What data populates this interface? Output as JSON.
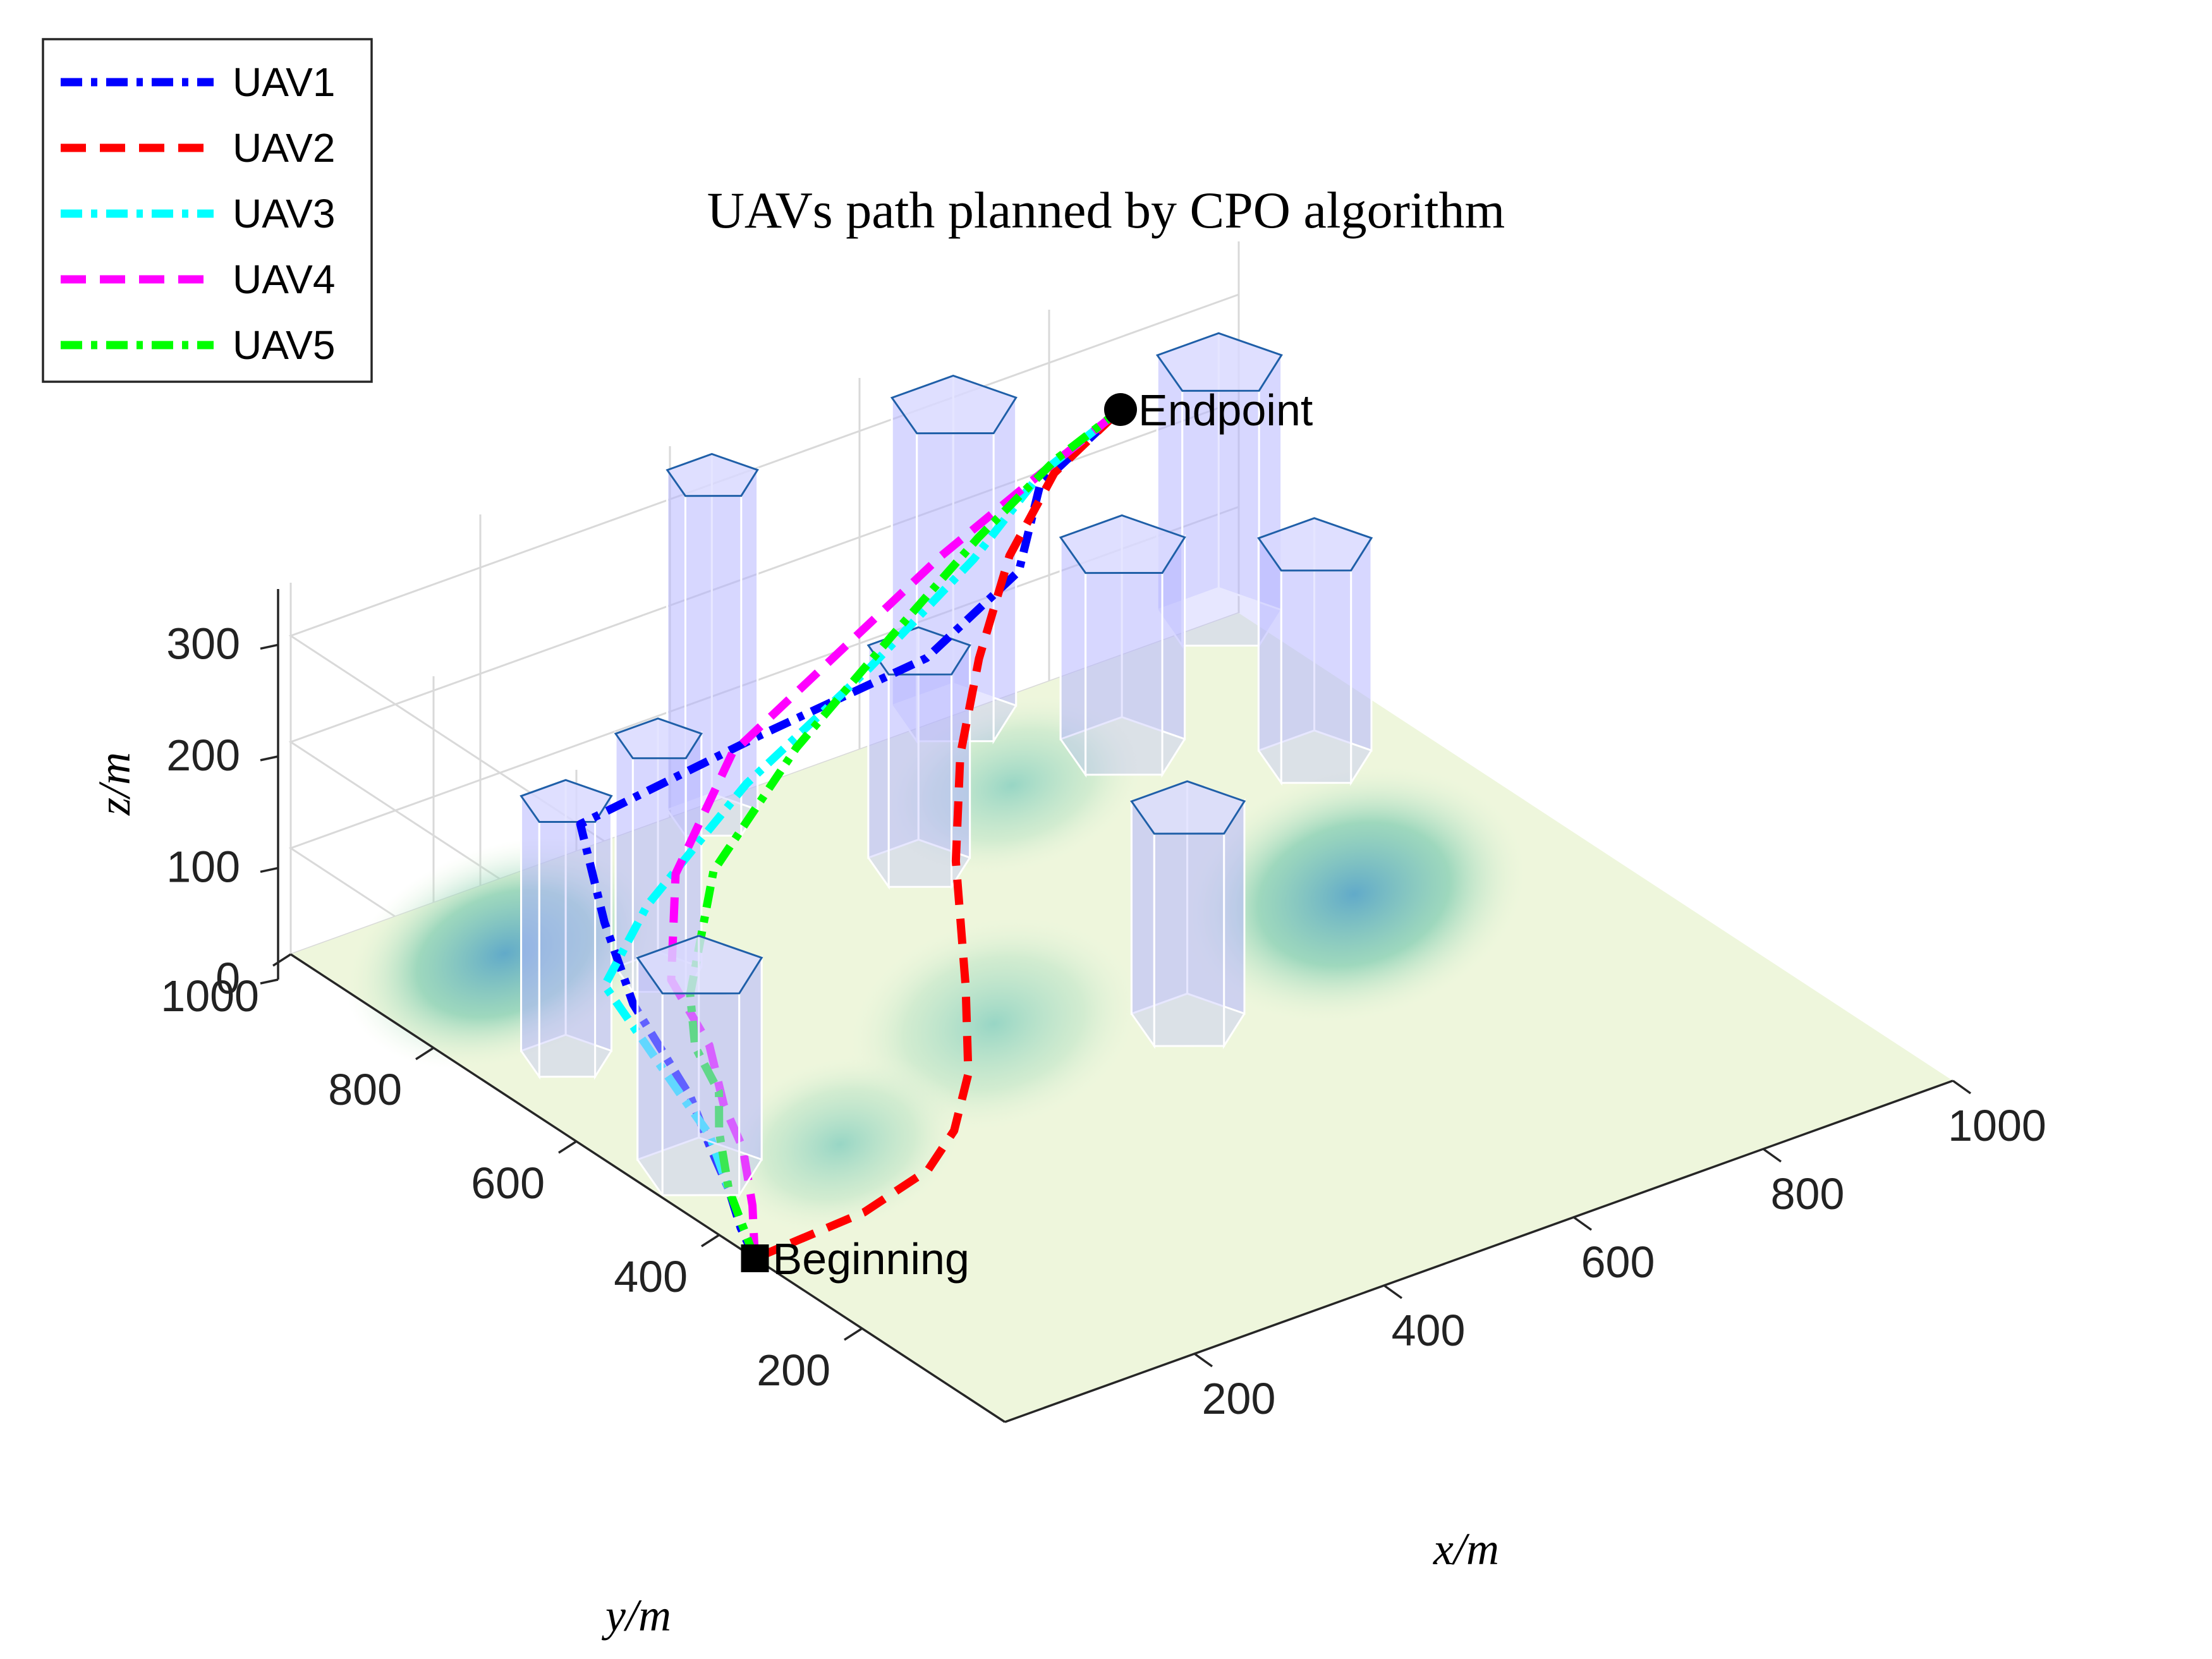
{
  "chart_data": {
    "type": "line",
    "projection": "3d",
    "title": "UAVs path planned by CPO algorithm",
    "xlabel": "x/m",
    "ylabel": "y/m",
    "zlabel": "z/m",
    "xlim": [
      0,
      1000
    ],
    "ylim": [
      0,
      1000
    ],
    "zlim": [
      0,
      350
    ],
    "xticks": [
      200,
      400,
      600,
      800,
      1000
    ],
    "yticks": [
      200,
      400,
      600,
      800,
      1000
    ],
    "zticks": [
      0,
      100,
      200,
      300
    ],
    "grid": true,
    "legend_position": "top-left",
    "colors": {
      "terrain_low": "#eef6dc",
      "terrain_high": "#6fb4c8",
      "obstacle_fill": "#b4b4ff",
      "obstacle_edge": "#1f5fa8"
    },
    "annotations": [
      {
        "label": "Beginning",
        "marker": "square",
        "x": 0,
        "y": 350,
        "z": 0
      },
      {
        "label": "Endpoint",
        "marker": "circle",
        "x": 800,
        "y": 900,
        "z": 300
      }
    ],
    "series": [
      {
        "name": "UAV1",
        "color": "#0000ff",
        "dash": "dash-dot",
        "points": [
          [
            0,
            350,
            0
          ],
          [
            0,
            370,
            20
          ],
          [
            10,
            400,
            40
          ],
          [
            20,
            440,
            60
          ],
          [
            30,
            480,
            85
          ],
          [
            40,
            530,
            100
          ],
          [
            60,
            600,
            110
          ],
          [
            120,
            720,
            115
          ],
          [
            200,
            860,
            120
          ],
          [
            360,
            820,
            170
          ],
          [
            520,
            800,
            200
          ],
          [
            640,
            830,
            230
          ],
          [
            700,
            880,
            270
          ],
          [
            800,
            900,
            300
          ]
        ]
      },
      {
        "name": "UAV2",
        "color": "#ff0000",
        "dash": "dash",
        "points": [
          [
            0,
            350,
            0
          ],
          [
            100,
            330,
            20
          ],
          [
            160,
            320,
            45
          ],
          [
            180,
            310,
            80
          ],
          [
            210,
            330,
            115
          ],
          [
            260,
            400,
            150
          ],
          [
            340,
            520,
            190
          ],
          [
            420,
            620,
            220
          ],
          [
            500,
            700,
            250
          ],
          [
            600,
            790,
            275
          ],
          [
            700,
            860,
            290
          ],
          [
            800,
            900,
            300
          ]
        ]
      },
      {
        "name": "UAV3",
        "color": "#00ffff",
        "dash": "dash-dot",
        "points": [
          [
            0,
            350,
            0
          ],
          [
            10,
            400,
            40
          ],
          [
            20,
            440,
            70
          ],
          [
            20,
            480,
            90
          ],
          [
            40,
            560,
            100
          ],
          [
            60,
            640,
            110
          ],
          [
            150,
            700,
            130
          ],
          [
            300,
            760,
            170
          ],
          [
            460,
            800,
            210
          ],
          [
            600,
            840,
            250
          ],
          [
            700,
            880,
            280
          ],
          [
            800,
            900,
            300
          ]
        ]
      },
      {
        "name": "UAV4",
        "color": "#ff00ff",
        "dash": "dash",
        "points": [
          [
            0,
            350,
            0
          ],
          [
            20,
            380,
            30
          ],
          [
            40,
            420,
            60
          ],
          [
            50,
            460,
            80
          ],
          [
            80,
            520,
            100
          ],
          [
            100,
            600,
            120
          ],
          [
            180,
            700,
            150
          ],
          [
            300,
            780,
            190
          ],
          [
            440,
            820,
            220
          ],
          [
            580,
            860,
            250
          ],
          [
            700,
            880,
            280
          ],
          [
            800,
            900,
            300
          ]
        ]
      },
      {
        "name": "UAV5",
        "color": "#00ff00",
        "dash": "dash-dot",
        "points": [
          [
            0,
            350,
            0
          ],
          [
            10,
            400,
            40
          ],
          [
            30,
            440,
            70
          ],
          [
            60,
            480,
            80
          ],
          [
            80,
            540,
            90
          ],
          [
            120,
            600,
            100
          ],
          [
            220,
            700,
            140
          ],
          [
            360,
            770,
            180
          ],
          [
            500,
            820,
            220
          ],
          [
            620,
            860,
            255
          ],
          [
            720,
            885,
            285
          ],
          [
            800,
            900,
            300
          ]
        ]
      }
    ]
  }
}
